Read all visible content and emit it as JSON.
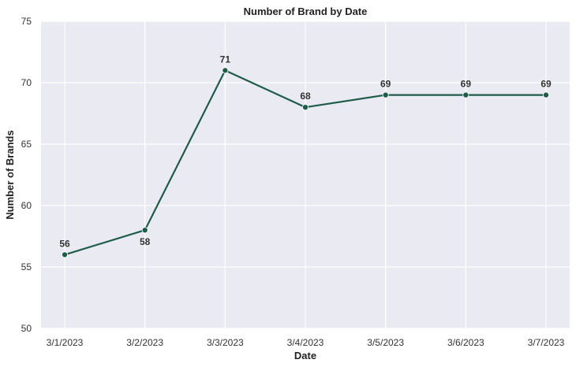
{
  "chart_data": {
    "type": "line",
    "title": "Number of Brand by Date",
    "xlabel": "Date",
    "ylabel": "Number of Brands",
    "categories": [
      "3/1/2023",
      "3/2/2023",
      "3/3/2023",
      "3/4/2023",
      "3/5/2023",
      "3/6/2023",
      "3/7/2023"
    ],
    "series": [
      {
        "values": [
          56,
          58,
          71,
          68,
          69,
          69,
          69
        ]
      }
    ],
    "data_labels": [
      "56",
      "58",
      "71",
      "68",
      "69",
      "69",
      "69"
    ],
    "ylim": [
      50,
      75
    ],
    "yticks": [
      "50",
      "55",
      "60",
      "65",
      "70",
      "75"
    ],
    "grid": true,
    "colors": {
      "line": "#1f5c4a",
      "plot_background": "#eaeaf2",
      "grid": "#ffffff"
    }
  }
}
